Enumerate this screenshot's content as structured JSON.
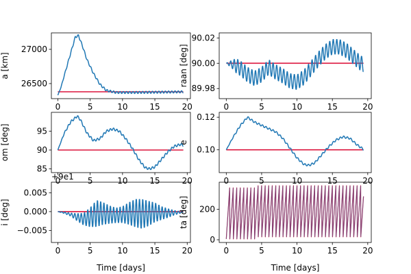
{
  "colors": {
    "line": "#1f77b4",
    "reference": "#dc143c"
  },
  "chart_data": [
    {
      "type": "line",
      "ylabel": "a [km]",
      "xlabel": "",
      "offset_text": "",
      "xlim": [
        -1,
        20.5
      ],
      "ylim": [
        26280,
        27240
      ],
      "xticks": [
        0,
        5,
        10,
        15,
        20
      ],
      "xtick_labels": [
        "0",
        "5",
        "10",
        "15",
        "20"
      ],
      "yticks": [
        26500,
        27000
      ],
      "ytick_labels": [
        "26500",
        "27000"
      ],
      "reference": 26380,
      "oscillation": {
        "amp": 15,
        "period": 0.5
      },
      "trend": [
        [
          0,
          26330
        ],
        [
          0.5,
          26450
        ],
        [
          1,
          26620
        ],
        [
          2,
          26950
        ],
        [
          2.7,
          27180
        ],
        [
          3.2,
          27200
        ],
        [
          3.8,
          27050
        ],
        [
          4.5,
          26850
        ],
        [
          5.5,
          26650
        ],
        [
          6.5,
          26490
        ],
        [
          7.5,
          26400
        ],
        [
          9,
          26370
        ],
        [
          12,
          26370
        ],
        [
          16,
          26375
        ],
        [
          19.5,
          26380
        ]
      ],
      "series": [
        {
          "x": [],
          "y": []
        }
      ]
    },
    {
      "type": "line",
      "ylabel": "raan [deg]",
      "xlabel": "",
      "offset_text": "",
      "xlim": [
        -1,
        20.5
      ],
      "ylim": [
        89.972,
        90.024
      ],
      "xticks": [
        0,
        5,
        10,
        15,
        20
      ],
      "xtick_labels": [
        "0",
        "5",
        "10",
        "15",
        "20"
      ],
      "yticks": [
        89.98,
        90.0,
        90.02
      ],
      "ytick_labels": [
        "89.98",
        "90.00",
        "90.02"
      ],
      "reference": 90.0,
      "oscillation": {
        "amp": 0.006,
        "period": 0.5
      },
      "trend": [
        [
          0,
          90.0
        ],
        [
          1,
          89.999
        ],
        [
          2,
          89.996
        ],
        [
          3,
          89.991
        ],
        [
          4,
          89.988
        ],
        [
          5,
          89.991
        ],
        [
          6,
          89.997
        ],
        [
          7,
          89.993
        ],
        [
          8,
          89.99
        ],
        [
          9,
          89.986
        ],
        [
          10,
          89.985
        ],
        [
          11,
          89.989
        ],
        [
          12,
          89.996
        ],
        [
          13,
          90.003
        ],
        [
          14,
          90.009
        ],
        [
          15,
          90.013
        ],
        [
          16,
          90.013
        ],
        [
          17,
          90.01
        ],
        [
          18,
          90.005
        ],
        [
          19,
          90.0
        ],
        [
          19.4,
          89.999
        ]
      ],
      "series": [
        {
          "x": [],
          "y": []
        }
      ]
    },
    {
      "type": "line",
      "ylabel": "om [deg]",
      "xlabel": "",
      "offset_text": "",
      "xlim": [
        -1,
        20.5
      ],
      "ylim": [
        84,
        100
      ],
      "xticks": [
        0,
        5,
        10,
        15,
        20
      ],
      "xtick_labels": [
        "0",
        "5",
        "10",
        "15",
        "20"
      ],
      "yticks": [
        85,
        90,
        95
      ],
      "ytick_labels": [
        "85",
        "90",
        "95"
      ],
      "reference": 90,
      "oscillation": {
        "amp": 0.3,
        "period": 0.5
      },
      "trend": [
        [
          0,
          90
        ],
        [
          1,
          94.5
        ],
        [
          2,
          97.5
        ],
        [
          3,
          99
        ],
        [
          3.5,
          98
        ],
        [
          4.5,
          94.5
        ],
        [
          5.5,
          92.5
        ],
        [
          6.5,
          93
        ],
        [
          7.5,
          95
        ],
        [
          8.5,
          95.6
        ],
        [
          9.5,
          95
        ],
        [
          10.5,
          93
        ],
        [
          11.5,
          90.5
        ],
        [
          12.5,
          87.5
        ],
        [
          13.5,
          85.3
        ],
        [
          14.2,
          85
        ],
        [
          15,
          85.5
        ],
        [
          16,
          87.5
        ],
        [
          17,
          89.5
        ],
        [
          18,
          91
        ],
        [
          19,
          91.5
        ],
        [
          19.5,
          91.2
        ]
      ],
      "series": [
        {
          "x": [],
          "y": []
        }
      ]
    },
    {
      "type": "line",
      "ylabel": "e",
      "xlabel": "",
      "offset_text": "",
      "xlim": [
        -1,
        20.5
      ],
      "ylim": [
        0.086,
        0.123
      ],
      "xticks": [
        0,
        5,
        10,
        15,
        20
      ],
      "xtick_labels": [
        "0",
        "5",
        "10",
        "15",
        "20"
      ],
      "yticks": [
        0.1,
        0.12
      ],
      "ytick_labels": [
        "0.10",
        "0.12"
      ],
      "reference": 0.1,
      "oscillation": {
        "amp": 0.0006,
        "period": 0.5
      },
      "trend": [
        [
          0,
          0.1
        ],
        [
          1,
          0.108
        ],
        [
          2,
          0.115
        ],
        [
          3,
          0.12
        ],
        [
          4,
          0.117
        ],
        [
          5,
          0.115
        ],
        [
          6,
          0.113
        ],
        [
          7,
          0.111
        ],
        [
          8,
          0.107
        ],
        [
          9,
          0.101
        ],
        [
          10,
          0.095
        ],
        [
          11,
          0.091
        ],
        [
          11.7,
          0.0905
        ],
        [
          12.5,
          0.092
        ],
        [
          13.5,
          0.097
        ],
        [
          14.5,
          0.102
        ],
        [
          15.5,
          0.106
        ],
        [
          16.5,
          0.108
        ],
        [
          17.5,
          0.107
        ],
        [
          18.5,
          0.103
        ],
        [
          19.5,
          0.1
        ]
      ],
      "series": [
        {
          "x": [],
          "y": []
        }
      ]
    },
    {
      "type": "line",
      "ylabel": "i [deg]",
      "xlabel": "Time [days]",
      "offset_text": "+9e1",
      "xlim": [
        -1,
        20.5
      ],
      "ylim": [
        -0.0082,
        0.0078
      ],
      "xticks": [
        0,
        5,
        10,
        15,
        20
      ],
      "xtick_labels": [
        "0",
        "5",
        "10",
        "15",
        "20"
      ],
      "yticks": [
        -0.005,
        0.0,
        0.005
      ],
      "ytick_labels": [
        "−0.005",
        "0.000",
        "0.005"
      ],
      "reference": 0.0,
      "oscillation": {
        "amp": 0.004,
        "period": 0.5
      },
      "trend": [
        [
          0,
          0
        ],
        [
          1,
          -0.0003
        ],
        [
          2,
          -0.0008
        ],
        [
          3,
          -0.0015
        ],
        [
          4,
          -0.002
        ],
        [
          5,
          -0.0015
        ],
        [
          6,
          -0.0005
        ],
        [
          7,
          -0.0005
        ],
        [
          8,
          -0.0008
        ],
        [
          9,
          -0.001
        ],
        [
          10,
          -0.0008
        ],
        [
          11,
          -0.0005
        ],
        [
          12,
          -0.0004
        ],
        [
          13,
          -0.0006
        ],
        [
          14,
          -0.0005
        ],
        [
          15,
          -0.0002
        ],
        [
          16,
          -0.0004
        ],
        [
          17,
          -0.0004
        ],
        [
          18,
          -0.0003
        ],
        [
          19,
          -0.0002
        ],
        [
          19.5,
          0
        ]
      ],
      "envelope": [
        [
          0,
          0
        ],
        [
          1,
          0.05
        ],
        [
          2,
          0.1
        ],
        [
          3,
          0.25
        ],
        [
          4,
          0.4
        ],
        [
          5,
          0.65
        ],
        [
          6,
          0.9
        ],
        [
          7,
          0.75
        ],
        [
          8,
          0.6
        ],
        [
          9,
          0.5
        ],
        [
          10,
          0.55
        ],
        [
          11,
          0.75
        ],
        [
          12,
          0.95
        ],
        [
          13,
          1
        ],
        [
          14,
          0.85
        ],
        [
          15,
          0.65
        ],
        [
          16,
          0.45
        ],
        [
          17,
          0.3
        ],
        [
          18,
          0.15
        ],
        [
          19,
          0.05
        ],
        [
          19.5,
          0.02
        ]
      ],
      "series": [
        {
          "x": [],
          "y": []
        }
      ]
    },
    {
      "type": "line",
      "ylabel": "ta [deg]",
      "xlabel": "Time [days]",
      "offset_text": "",
      "xlim": [
        -1,
        20.5
      ],
      "ylim": [
        -18,
        378
      ],
      "xticks": [
        0,
        5,
        10,
        15,
        20
      ],
      "xtick_labels": [
        "0",
        "5",
        "10",
        "15",
        "20"
      ],
      "yticks": [
        0,
        200
      ],
      "ytick_labels": [
        "0",
        "200"
      ],
      "sawtooth": {
        "period": 0.5,
        "min": 5,
        "max": 355
      },
      "series": [
        {
          "x": [],
          "y": []
        }
      ]
    }
  ]
}
